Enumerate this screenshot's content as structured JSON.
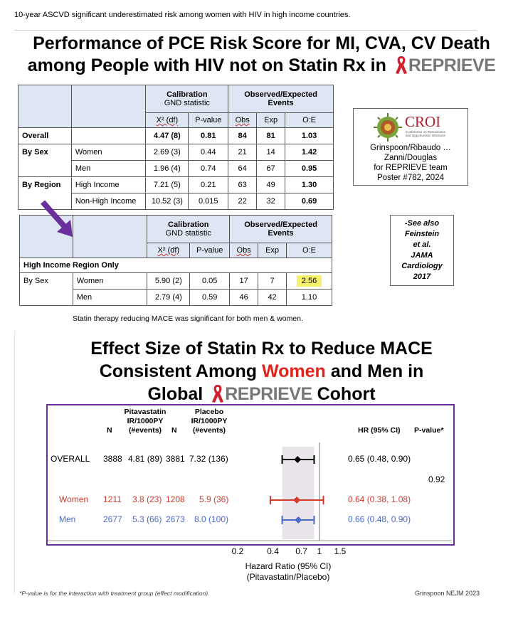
{
  "top_caption": "10-year ASCVD significant underestimated risk among women with HIV in high income countries.",
  "slide1": {
    "title_line1": "Performance of PCE Risk Score for MI, CVA, CV Death",
    "title_line2": "among People with HIV not on Statin Rx in",
    "logo_text": "REPRIEVE",
    "table1": {
      "group_calibration": "Calibration",
      "group_calibration_sub": "GND statistic",
      "group_oe": "Observed/Expected",
      "group_oe_sub": "Events",
      "cols": [
        "X² (df)",
        "P-value",
        "Obs",
        "Exp",
        "O:E"
      ],
      "rows": [
        {
          "group": "Overall",
          "sub": "",
          "x2": "4.47 (8)",
          "p": "0.81",
          "obs": "84",
          "exp": "81",
          "oe": "1.03"
        },
        {
          "group": "By Sex",
          "sub": "Women",
          "x2": "2.69 (3)",
          "p": "0.44",
          "obs": "21",
          "exp": "14",
          "oe": "1.42"
        },
        {
          "group": "",
          "sub": "Men",
          "x2": "1.96 (4)",
          "p": "0.74",
          "obs": "64",
          "exp": "67",
          "oe": "0.95"
        },
        {
          "group": "By Region",
          "sub": "High Income",
          "x2": "7.21 (5)",
          "p": "0.21",
          "obs": "63",
          "exp": "49",
          "oe": "1.30"
        },
        {
          "group": "",
          "sub": "Non-High Income",
          "x2": "10.52 (3)",
          "p": "0.015",
          "obs": "22",
          "exp": "32",
          "oe": "0.69"
        }
      ]
    },
    "table2": {
      "section_label": "High Income Region Only",
      "rows": [
        {
          "group": "By Sex",
          "sub": "Women",
          "x2": "5.90 (2)",
          "p": "0.05",
          "obs": "17",
          "exp": "7",
          "oe": "2.56"
        },
        {
          "group": "",
          "sub": "Men",
          "x2": "2.79 (4)",
          "p": "0.59",
          "obs": "46",
          "exp": "42",
          "oe": "1.10"
        }
      ]
    },
    "croi": {
      "logo": "CROI",
      "logo_sub1": "Conference on Retroviruses",
      "logo_sub2": "and Opportunistic Infections",
      "line1": "Grinspoon/Ribaudo …",
      "line2": "Zanni/Douglas",
      "line3": "for REPRIEVE team",
      "line4": "Poster #782, 2024"
    },
    "see_also": [
      "-See also",
      "Feinstein",
      "et al.",
      "JAMA",
      "Cardiology",
      "2017"
    ]
  },
  "mid_caption": "Statin therapy reducing MACE was significant for both men & women.",
  "slide2": {
    "title_line1": "Effect Size of Statin Rx to Reduce MACE",
    "title_line2a": "Consistent Among ",
    "title_line2b": "Women",
    "title_line2c": " and Men in",
    "title_line3a": "Global",
    "title_line3b": "Cohort",
    "logo_text": "REPRIEVE",
    "headers": {
      "pita": "Pitavastatin",
      "placebo": "Placebo",
      "ir": "IR/1000PY",
      "events": "(#events)",
      "n": "N",
      "hr": "HR (95% CI)",
      "pval": "P-value*"
    },
    "interaction_p": "0.92",
    "axis_title1": "Hazard Ratio (95% CI)",
    "axis_title2": "(Pitavastatin/Placebo)",
    "footnote": "*P-value is for the interaction with treatment group (effect modification).",
    "source": "Grinspoon NEJM 2023"
  },
  "chart_data": {
    "type": "forest",
    "x_scale": "log",
    "x_ticks": [
      "0.2",
      "0.4",
      "0.7",
      "1",
      "1.5"
    ],
    "xlim": [
      0.2,
      1.5
    ],
    "reference_line": 1,
    "shaded_band": [
      0.48,
      0.9
    ],
    "rows": [
      {
        "label": "OVERALL",
        "n_pita": "3888",
        "ir_pita": "4.81 (89)",
        "n_placebo": "3881",
        "ir_placebo": "7.32 (136)",
        "hr": 0.65,
        "lo": 0.48,
        "hi": 0.9,
        "hr_text": "0.65 (0.48, 0.90)",
        "color": "#000000"
      },
      {
        "label": "Women",
        "n_pita": "1211",
        "ir_pita": "3.8 (23)",
        "n_placebo": "1208",
        "ir_placebo": "5.9 (36)",
        "hr": 0.64,
        "lo": 0.38,
        "hi": 1.08,
        "hr_text": "0.64 (0.38, 1.08)",
        "color": "#d2392a"
      },
      {
        "label": "Men",
        "n_pita": "2677",
        "ir_pita": "5.3 (66)",
        "n_placebo": "2673",
        "ir_placebo": "8.0 (100)",
        "hr": 0.66,
        "lo": 0.48,
        "hi": 0.9,
        "hr_text": "0.66 (0.48, 0.90)",
        "color": "#4a6bc8"
      }
    ]
  },
  "colors": {
    "purple_frame": "#6a2f9c",
    "arrow": "#6a2f9c",
    "highlight": "#f6f16b",
    "header_fill": "#dde6f2",
    "women_red": "#e0231d"
  }
}
